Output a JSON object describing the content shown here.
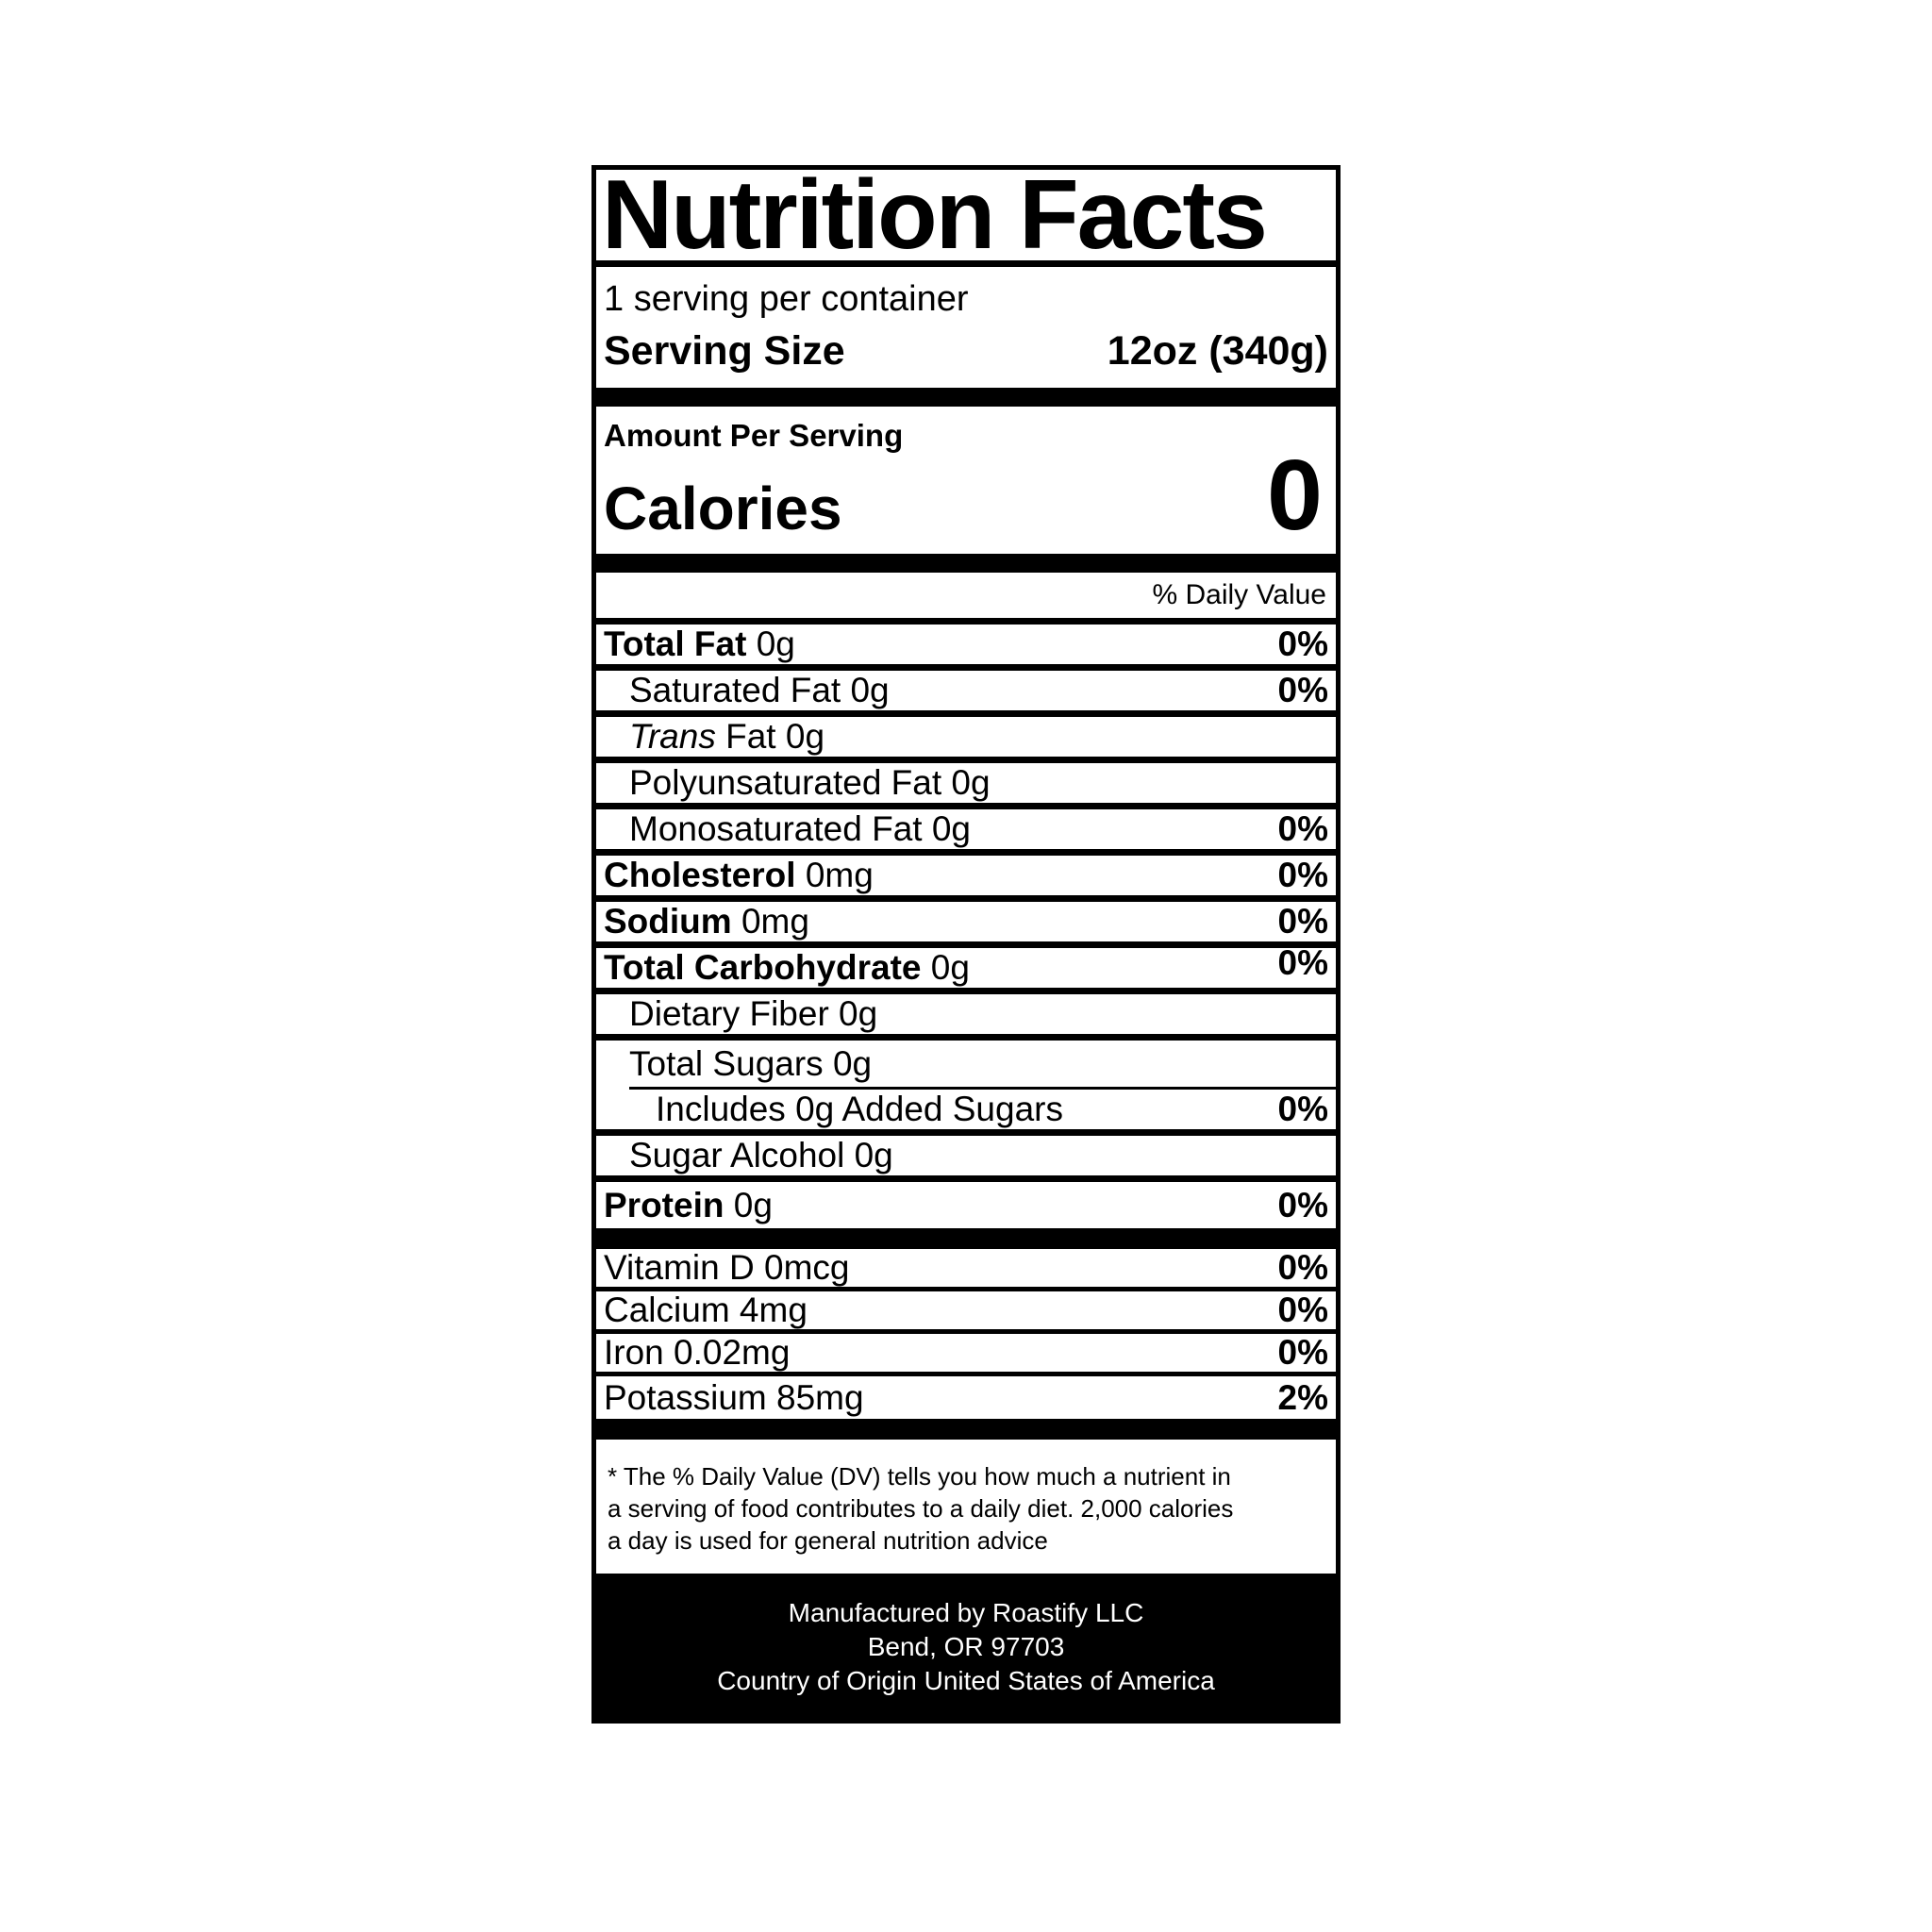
{
  "colors": {
    "ink": "#000000",
    "background": "#ffffff",
    "footer_bg": "#000000",
    "footer_text": "#ffffff"
  },
  "label": {
    "title": "Nutrition Facts",
    "servings_per_container": "1 serving per container",
    "serving_size": {
      "label": "Serving Size",
      "value": "12oz (340g)"
    },
    "amount_per_serving": "Amount Per Serving",
    "calories": {
      "label": "Calories",
      "value": "0"
    },
    "daily_value_header": "% Daily Value",
    "nutrients": [
      {
        "name": "Total Fat",
        "amount": "0g",
        "dv": "0%",
        "name_bold": true,
        "level": 0
      },
      {
        "name": "Saturated Fat",
        "amount": "0g",
        "dv": "0%",
        "level": 1
      },
      {
        "name": "Trans",
        "name_italic": true,
        "name_rest": "Fat",
        "amount": "0g",
        "dv": "",
        "level": 1
      },
      {
        "name": "Polyunsaturated Fat",
        "amount": "0g",
        "dv": "",
        "level": 1
      },
      {
        "name": "Monosaturated Fat",
        "amount": "0g",
        "dv": "0%",
        "level": 1
      },
      {
        "name": "Cholesterol",
        "amount": "0mg",
        "dv": "0%",
        "name_bold": true,
        "level": 0
      },
      {
        "name": "Sodium",
        "amount": "0mg",
        "dv": "0%",
        "name_bold": true,
        "level": 0
      },
      {
        "name": "Total Carbohydrate",
        "amount": "0g",
        "dv": "0%",
        "name_bold": true,
        "level": 0,
        "dv_raised": true
      },
      {
        "name": "Dietary Fiber",
        "amount": "0g",
        "dv": "",
        "level": 1
      },
      {
        "name": "Total Sugars",
        "amount": "0g",
        "dv": "",
        "level": 1,
        "divider": "thin-indent"
      },
      {
        "name": "Includes 0g Added Sugars",
        "amount": "",
        "dv": "0%",
        "level": 2
      },
      {
        "name": "Sugar Alcohol",
        "amount": "0g",
        "dv": "",
        "level": 1
      },
      {
        "name": "Protein",
        "amount": "0g",
        "dv": "0%",
        "name_bold": true,
        "level": 0,
        "divider": "none"
      }
    ],
    "micronutrients": [
      {
        "name": "Vitamin D",
        "amount": "0mcg",
        "dv": "0%"
      },
      {
        "name": "Calcium",
        "amount": "4mg",
        "dv": "0%"
      },
      {
        "name": "Iron",
        "amount": "0.02mg",
        "dv": "0%"
      },
      {
        "name": "Potassium",
        "amount": "85mg",
        "dv": "2%"
      }
    ],
    "footnote_lines": [
      "* The % Daily Value (DV) tells you how much a nutrient in",
      "a serving of food contributes to a daily diet. 2,000 calories",
      "a day is used for general nutrition advice"
    ],
    "footer_lines": [
      "Manufactured by Roastify LLC",
      "Bend, OR 97703",
      "Country of Origin United States of America"
    ]
  }
}
